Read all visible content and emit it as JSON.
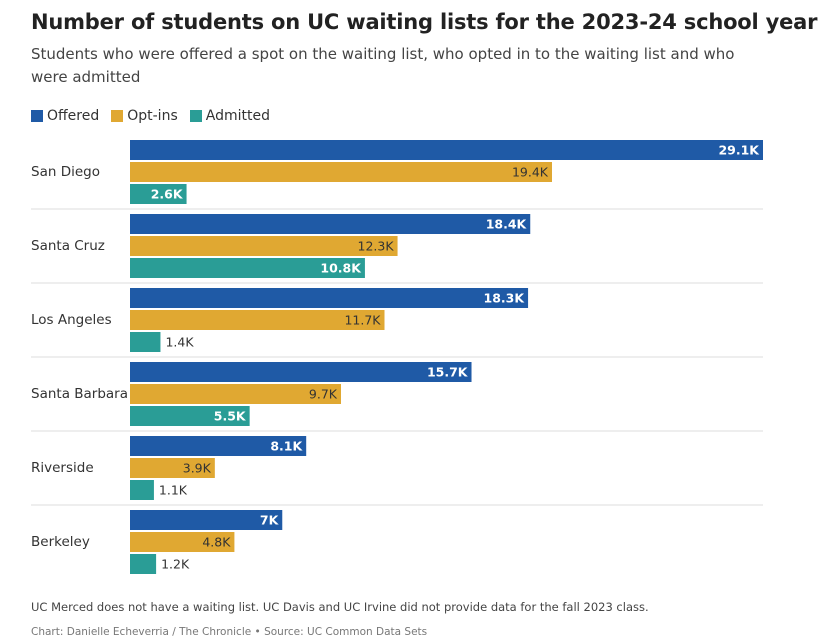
{
  "chart_data": {
    "type": "bar",
    "orientation": "horizontal",
    "title": "Number of students on UC waiting lists for the 2023-24 school year",
    "subtitle": "Students who were offered a spot on the waiting list, who opted in to the waiting list and who were admitted",
    "categories": [
      "San Diego",
      "Santa Cruz",
      "Los Angeles",
      "Santa Barbara",
      "Riverside",
      "Berkeley"
    ],
    "series": [
      {
        "name": "Offered",
        "color": "#1f5aa6",
        "values": [
          29.1,
          18.4,
          18.3,
          15.7,
          8.1,
          7.0
        ],
        "labels": [
          "29.1K",
          "18.4K",
          "18.3K",
          "15.7K",
          "8.1K",
          "7K"
        ]
      },
      {
        "name": "Opt-ins",
        "color": "#e0a832",
        "values": [
          19.4,
          12.3,
          11.7,
          9.7,
          3.9,
          4.8
        ],
        "labels": [
          "19.4K",
          "12.3K",
          "11.7K",
          "9.7K",
          "3.9K",
          "4.8K"
        ]
      },
      {
        "name": "Admitted",
        "color": "#2a9d96",
        "values": [
          2.6,
          10.8,
          1.4,
          5.5,
          1.1,
          1.2
        ],
        "labels": [
          "2.6K",
          "10.8K",
          "1.4K",
          "5.5K",
          "1.1K",
          "1.2K"
        ]
      }
    ],
    "unit": "thousands of students",
    "xlim": [
      0,
      29.1
    ],
    "legend_position": "top-left",
    "grid": false
  },
  "note": "UC Merced does not have a waiting list. UC Davis and UC Irvine did not provide data for the fall 2023 class.",
  "credit": "Chart: Danielle Echeverria / The Chronicle • Source: UC Common Data Sets"
}
